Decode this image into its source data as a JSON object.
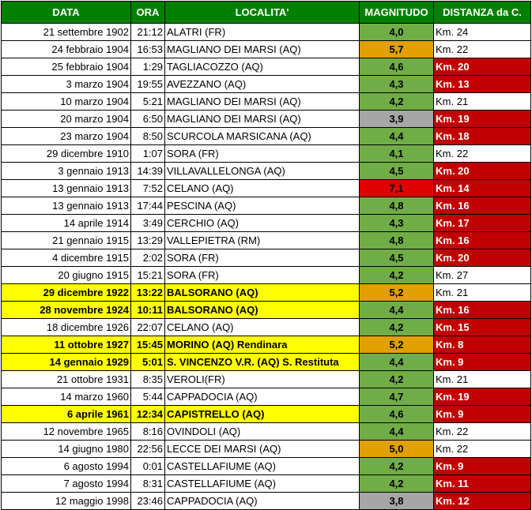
{
  "headers": {
    "data": "DATA",
    "ora": "ORA",
    "localita": "LOCALITA'",
    "magnitudo": "MAGNITUDO",
    "distanza": "DISTANZA da C."
  },
  "colors": {
    "header_bg": "#008000",
    "highlight_row": "#ffff00",
    "mag_green": "#70ad47",
    "mag_orange": "#e0a000",
    "mag_red": "#e00000",
    "mag_grey": "#a6a6a6",
    "dist_red": "#c00000"
  },
  "rows": [
    {
      "data": "21 settembre 1902",
      "ora": "21:12",
      "localita": "ALATRI (FR)",
      "magnitudo": "4,0",
      "distanza": "Km. 24",
      "mag_color": "green",
      "near": false,
      "highlight": false
    },
    {
      "data": "24 febbraio 1904",
      "ora": "16:53",
      "localita": "MAGLIANO DEI MARSI (AQ)",
      "magnitudo": "5,7",
      "distanza": "Km. 22",
      "mag_color": "orange",
      "near": false,
      "highlight": false
    },
    {
      "data": "25 febbraio 1904",
      "ora": "1:29",
      "localita": "TAGLIACOZZO (AQ)",
      "magnitudo": "4,6",
      "distanza": "Km. 20",
      "mag_color": "green",
      "near": true,
      "highlight": false
    },
    {
      "data": "3 marzo 1904",
      "ora": "19:55",
      "localita": "AVEZZANO (AQ)",
      "magnitudo": "4,3",
      "distanza": "Km. 13",
      "mag_color": "green",
      "near": true,
      "highlight": false
    },
    {
      "data": "10 marzo 1904",
      "ora": "5:21",
      "localita": "MAGLIANO DEI MARSI (AQ)",
      "magnitudo": "4,2",
      "distanza": "Km. 21",
      "mag_color": "green",
      "near": false,
      "highlight": false
    },
    {
      "data": "20 marzo 1904",
      "ora": "6:50",
      "localita": "MAGLIANO DEI MARSI (AQ)",
      "magnitudo": "3,9",
      "distanza": "Km. 19",
      "mag_color": "grey",
      "near": true,
      "highlight": false
    },
    {
      "data": "23 marzo 1904",
      "ora": "8:50",
      "localita": "SCURCOLA MARSICANA (AQ)",
      "magnitudo": "4,4",
      "distanza": "Km. 18",
      "mag_color": "green",
      "near": true,
      "highlight": false
    },
    {
      "data": "29 dicembre 1910",
      "ora": "1:07",
      "localita": "SORA (FR)",
      "magnitudo": "4,1",
      "distanza": "Km. 22",
      "mag_color": "green",
      "near": false,
      "highlight": false
    },
    {
      "data": "3 gennaio 1913",
      "ora": "14:39",
      "localita": "VILLAVALLELONGA (AQ)",
      "magnitudo": "4,5",
      "distanza": "Km. 20",
      "mag_color": "green",
      "near": true,
      "highlight": false
    },
    {
      "data": "13 gennaio 1913",
      "ora": "7:52",
      "localita": "CELANO (AQ)",
      "magnitudo": "7,1",
      "distanza": "Km. 14",
      "mag_color": "red",
      "near": true,
      "highlight": false
    },
    {
      "data": "13 gennaio 1913",
      "ora": "17:44",
      "localita": "PESCINA (AQ)",
      "magnitudo": "4,8",
      "distanza": "Km. 16",
      "mag_color": "green",
      "near": true,
      "highlight": false
    },
    {
      "data": "14 aprile 1914",
      "ora": "3:49",
      "localita": "CERCHIO (AQ)",
      "magnitudo": "4,3",
      "distanza": "Km. 17",
      "mag_color": "green",
      "near": true,
      "highlight": false
    },
    {
      "data": "21 gennaio 1915",
      "ora": "13:29",
      "localita": "VALLEPIETRA (RM)",
      "magnitudo": "4,8",
      "distanza": "Km. 16",
      "mag_color": "green",
      "near": true,
      "highlight": false
    },
    {
      "data": "4 dicembre 1915",
      "ora": "2:02",
      "localita": "SORA (FR)",
      "magnitudo": "4,5",
      "distanza": "Km. 20",
      "mag_color": "green",
      "near": true,
      "highlight": false
    },
    {
      "data": "20 giugno 1915",
      "ora": "15:21",
      "localita": "SORA (FR)",
      "magnitudo": "4,2",
      "distanza": "Km. 27",
      "mag_color": "green",
      "near": false,
      "highlight": false
    },
    {
      "data": "29 dicembre 1922",
      "ora": "13:22",
      "localita": "BALSORANO (AQ)",
      "magnitudo": "5,2",
      "distanza": "Km. 21",
      "mag_color": "orange",
      "near": false,
      "highlight": true
    },
    {
      "data": "28 novembre 1924",
      "ora": "10:11",
      "localita": "BALSORANO (AQ)",
      "magnitudo": "4,4",
      "distanza": "Km. 16",
      "mag_color": "green",
      "near": true,
      "highlight": true
    },
    {
      "data": "18 dicembre 1926",
      "ora": "22:07",
      "localita": "CELANO (AQ)",
      "magnitudo": "4,2",
      "distanza": "Km. 15",
      "mag_color": "green",
      "near": true,
      "highlight": false
    },
    {
      "data": "11 ottobre 1927",
      "ora": "15:45",
      "localita": "MORINO (AQ) Rendinara",
      "magnitudo": "5,2",
      "distanza": "Km. 8",
      "mag_color": "orange",
      "near": true,
      "highlight": true
    },
    {
      "data": "14 gennaio 1929",
      "ora": "5:01",
      "localita": "S. VINCENZO V.R. (AQ) S. Restituta",
      "magnitudo": "4,4",
      "distanza": "Km. 9",
      "mag_color": "green",
      "near": true,
      "highlight": true
    },
    {
      "data": "21 ottobre 1931",
      "ora": "8:35",
      "localita": "VEROLI(FR)",
      "magnitudo": "4,2",
      "distanza": "Km. 21",
      "mag_color": "green",
      "near": false,
      "highlight": false
    },
    {
      "data": "14 marzo 1960",
      "ora": "5:44",
      "localita": "CAPPADOCIA (AQ)",
      "magnitudo": "4,7",
      "distanza": "Km. 19",
      "mag_color": "green",
      "near": true,
      "highlight": false
    },
    {
      "data": "6 aprile 1961",
      "ora": "12:34",
      "localita": "CAPISTRELLO (AQ)",
      "magnitudo": "4,6",
      "distanza": "Km. 9",
      "mag_color": "green",
      "near": true,
      "highlight": true
    },
    {
      "data": "12 novembre 1965",
      "ora": "8:16",
      "localita": "OVINDOLI (AQ)",
      "magnitudo": "4,4",
      "distanza": "Km. 22",
      "mag_color": "green",
      "near": false,
      "highlight": false
    },
    {
      "data": "14 giugno 1980",
      "ora": "22:56",
      "localita": "LECCE DEI MARSI (AQ)",
      "magnitudo": "5,0",
      "distanza": "Km. 22",
      "mag_color": "orange",
      "near": false,
      "highlight": false
    },
    {
      "data": "6 agosto 1994",
      "ora": "0:01",
      "localita": "CASTELLAFIUME (AQ)",
      "magnitudo": "4,2",
      "distanza": "Km. 9",
      "mag_color": "green",
      "near": true,
      "highlight": false
    },
    {
      "data": "7 agosto 1994",
      "ora": "8:31",
      "localita": "CASTELLAFIUME (AQ)",
      "magnitudo": "4,2",
      "distanza": "Km. 11",
      "mag_color": "green",
      "near": true,
      "highlight": false
    },
    {
      "data": "12 maggio 1998",
      "ora": "23:46",
      "localita": "CAPPADOCIA (AQ)",
      "magnitudo": "3,8",
      "distanza": "Km. 12",
      "mag_color": "grey",
      "near": true,
      "highlight": false
    }
  ]
}
